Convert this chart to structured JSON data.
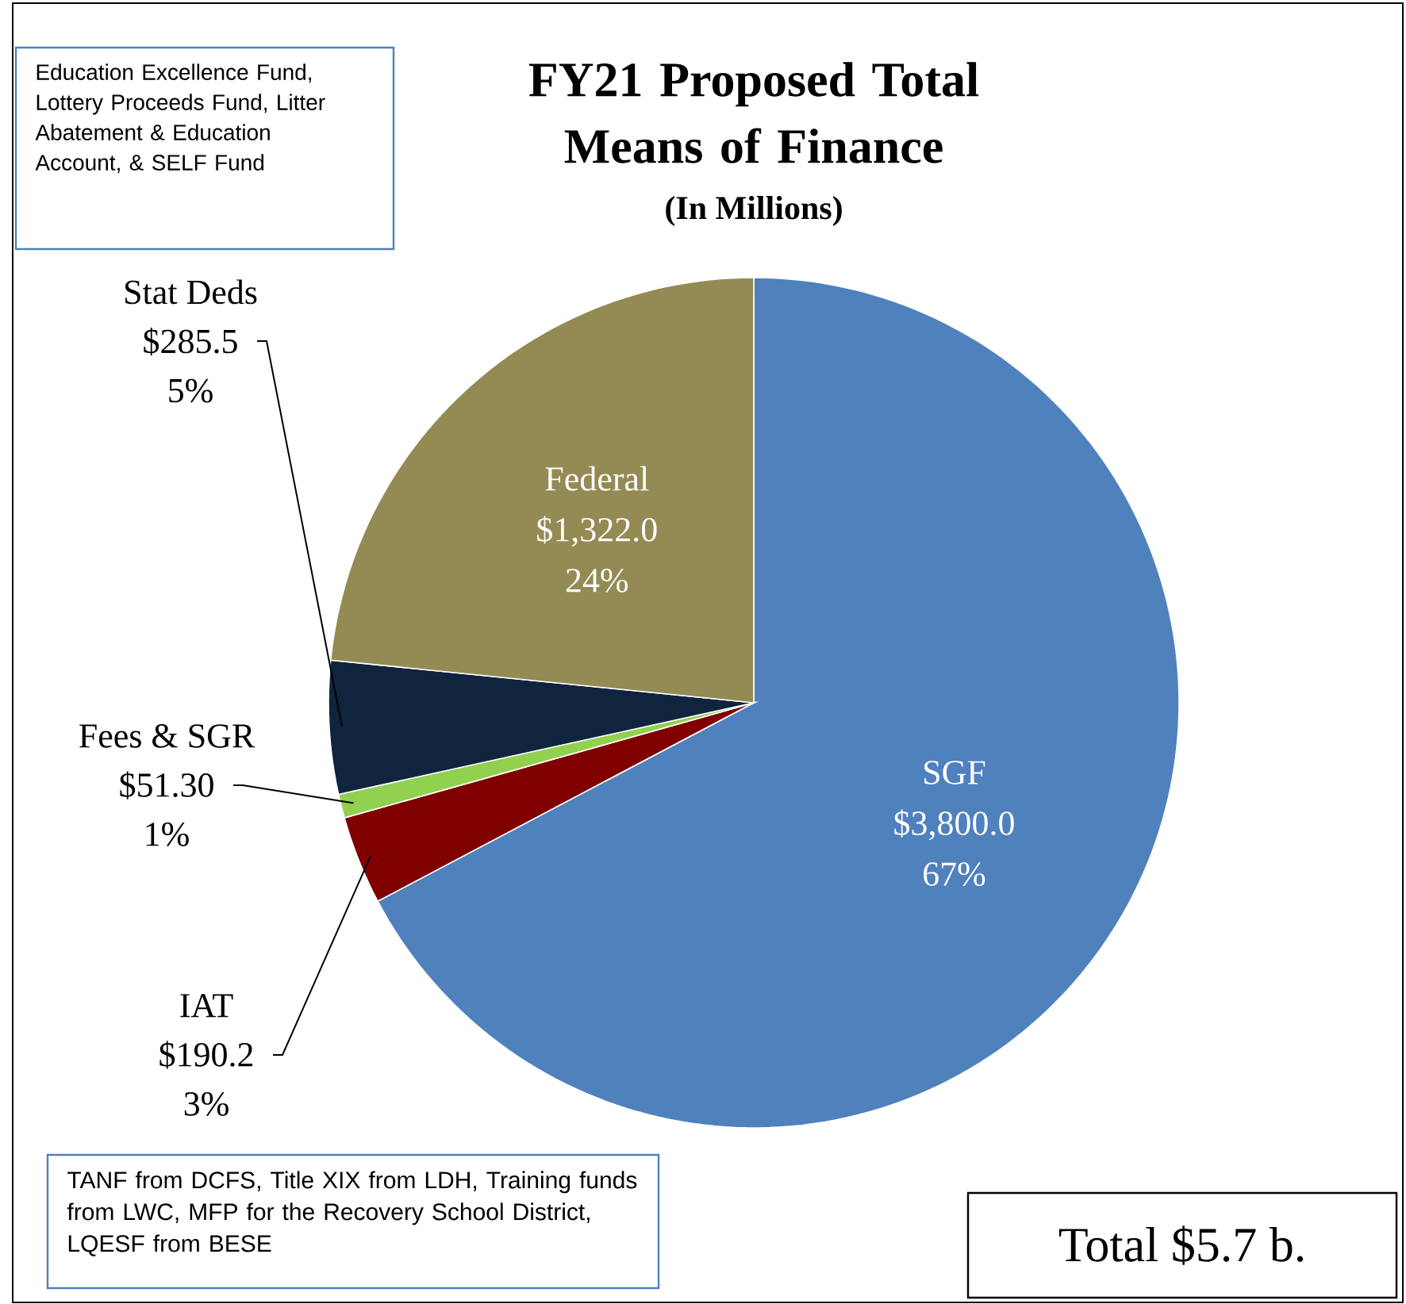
{
  "chart_data": {
    "type": "pie",
    "title": "FY21 Proposed Total Means of Finance",
    "subtitle": "(In Millions)",
    "categories": [
      "SGF",
      "IAT",
      "Fees & SGR",
      "Stat Deds",
      "Federal"
    ],
    "values": [
      3800.0,
      190.2,
      51.3,
      285.5,
      1322.0
    ],
    "colors": [
      "#4f81bd",
      "#800000",
      "#92d050",
      "#10243e",
      "#948a54"
    ],
    "value_labels": [
      "$3,800.0",
      "$190.2",
      "$51.30",
      "$285.5",
      "$1,322.0"
    ],
    "data_labels": true,
    "annotations": [
      "Education Excellence Fund, Lottery Proceeds Fund, Litter Abatement & Education Account, & SELF Fund",
      "TANF from DCFS, Title XIX from LDH, Training funds from LWC, MFP for the Recovery School District, LQESF from BESE",
      "Total $5.7 b.",
      {
        "text": "67%",
        "x": "SGF"
      },
      {
        "text": "3%",
        "x": "IAT"
      },
      {
        "text": "1%",
        "x": "Fees & SGR"
      },
      {
        "text": "5%",
        "x": "Stat Deds"
      },
      {
        "text": "24%",
        "x": "Federal"
      }
    ]
  }
}
